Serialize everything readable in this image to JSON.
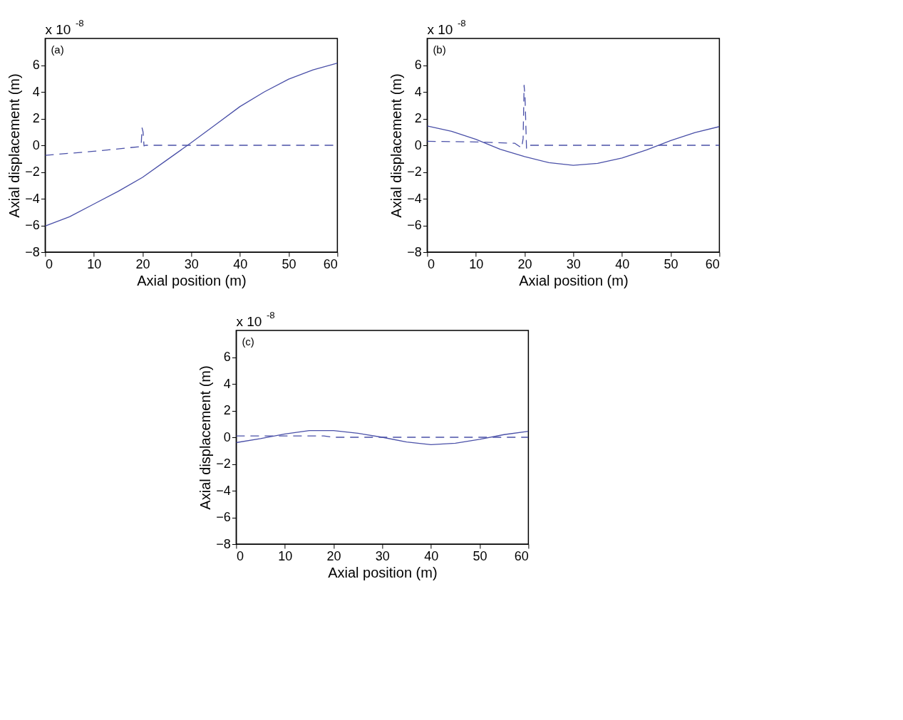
{
  "chart_data": [
    {
      "type": "line",
      "xlabel": "Axial position (m)",
      "ylabel": "Axial displacement (m)",
      "annotations": [
        "(a)",
        "x 10$^{-8}$"
      ],
      "xlim": [
        0,
        60
      ],
      "xticks": [
        0,
        10,
        20,
        30,
        40,
        50,
        60
      ],
      "ylim": [
        -8,
        8
      ],
      "yticks": [
        -8,
        -6,
        -4,
        -2,
        0,
        2,
        4,
        6
      ],
      "grid": false,
      "series": [
        {
          "color": "#4a50a8",
          "line_style": "solid",
          "x": [
            0,
            5,
            10,
            15,
            20,
            25,
            30,
            35,
            40,
            45,
            50,
            55,
            60
          ],
          "values": [
            -6.05,
            -5.35,
            -4.4,
            -3.45,
            -2.4,
            -1.1,
            0.2,
            1.55,
            2.9,
            4.0,
            4.95,
            5.65,
            6.15
          ]
        },
        {
          "color": "#4a50a8",
          "line_style": "dashed",
          "x": [
            0,
            10,
            19.5,
            19.7,
            19.9,
            20.1,
            20.3,
            20.6,
            60
          ],
          "values": [
            -0.75,
            -0.45,
            -0.1,
            -0.05,
            1.3,
            1.0,
            -0.05,
            0,
            0
          ]
        }
      ]
    },
    {
      "type": "line",
      "xlabel": "Axial position (m)",
      "ylabel": "Axial displacement (m)",
      "annotations": [
        "(b)",
        "x 10$^{-8}$"
      ],
      "xlim": [
        0,
        60
      ],
      "xticks": [
        0,
        10,
        20,
        30,
        40,
        50,
        60
      ],
      "ylim": [
        -8,
        8
      ],
      "yticks": [
        -8,
        -6,
        -4,
        -2,
        0,
        2,
        4,
        6
      ],
      "grid": false,
      "series": [
        {
          "color": "#4a50a8",
          "line_style": "solid",
          "x": [
            0,
            5,
            10,
            15,
            20,
            25,
            30,
            35,
            40,
            45,
            50,
            55,
            60
          ],
          "values": [
            1.45,
            1.05,
            0.45,
            -0.3,
            -0.85,
            -1.3,
            -1.5,
            -1.35,
            -0.95,
            -0.35,
            0.35,
            0.95,
            1.4
          ]
        },
        {
          "color": "#4a50a8",
          "line_style": "dashed",
          "x": [
            0,
            10,
            18,
            19.4,
            19.7,
            19.9,
            20.1,
            20.4,
            20.8,
            60
          ],
          "values": [
            0.3,
            0.25,
            0.15,
            -0.2,
            0.5,
            4.5,
            3.5,
            -0.25,
            0,
            0
          ]
        }
      ]
    },
    {
      "type": "line",
      "xlabel": "Axial position (m)",
      "ylabel": "Axial displacement (m)",
      "annotations": [
        "(c)",
        "x 10$^{-8}$"
      ],
      "xlim": [
        0,
        60
      ],
      "xticks": [
        0,
        10,
        20,
        30,
        40,
        50,
        60
      ],
      "ylim": [
        -8,
        8
      ],
      "yticks": [
        -8,
        -6,
        -4,
        -2,
        0,
        2,
        4,
        6
      ],
      "grid": false,
      "series": [
        {
          "color": "#4a50a8",
          "line_style": "solid",
          "x": [
            0,
            5,
            10,
            15,
            20,
            25,
            30,
            35,
            40,
            45,
            50,
            55,
            60
          ],
          "values": [
            -0.4,
            -0.1,
            0.25,
            0.5,
            0.5,
            0.3,
            0.0,
            -0.35,
            -0.55,
            -0.45,
            -0.15,
            0.2,
            0.45
          ]
        },
        {
          "color": "#4a50a8",
          "line_style": "dashed",
          "x": [
            0,
            18,
            20,
            60
          ],
          "values": [
            0.1,
            0.1,
            0.0,
            0.0
          ]
        }
      ]
    }
  ]
}
